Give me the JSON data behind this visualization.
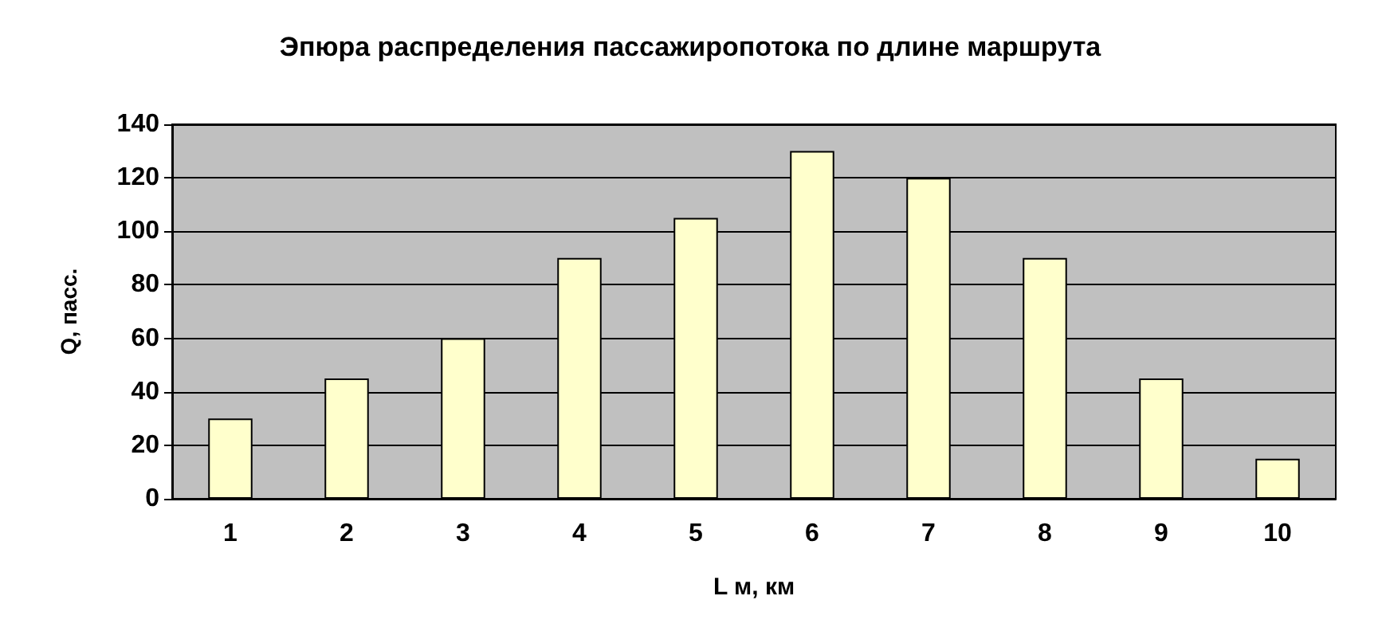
{
  "chart_data": {
    "type": "bar",
    "title": "Эпюра распределения пассажиропотока по длине маршрута",
    "xlabel": "L м, км",
    "ylabel": "Q, пасс.",
    "categories": [
      "1",
      "2",
      "3",
      "4",
      "5",
      "6",
      "7",
      "8",
      "9",
      "10"
    ],
    "values": [
      30,
      45,
      60,
      90,
      105,
      130,
      120,
      90,
      45,
      15
    ],
    "color": "#ffffcc",
    "ylim": [
      0,
      140
    ],
    "yticks": [
      0,
      20,
      40,
      60,
      80,
      100,
      120,
      140
    ],
    "grid": "y"
  }
}
